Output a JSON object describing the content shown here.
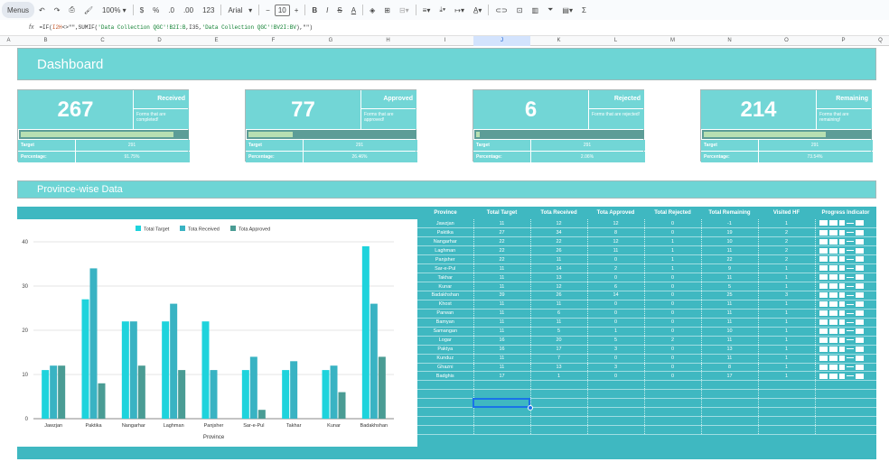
{
  "toolbar": {
    "menus_label": "Menus",
    "zoom": "100%",
    "currency": "$",
    "percent": "%",
    "dec_less": ".0",
    "dec_more": ".00",
    "number_format": "123",
    "font": "Arial",
    "font_size": "10",
    "bold": "B",
    "italic": "I",
    "strike": "S",
    "text_color": "A",
    "sigma": "Σ"
  },
  "formula": {
    "fx": "fx",
    "text_parts": [
      {
        "t": "=IF(",
        "c": ""
      },
      {
        "t": "I2H",
        "c": "r"
      },
      {
        "t": "<>\"\",SUMIF(",
        "c": ""
      },
      {
        "t": "'Data Collection QGC'!B2I:B",
        "c": "s"
      },
      {
        "t": ",I35,",
        "c": ""
      },
      {
        "t": "'Data Collection QGC'!BV2I:BV",
        "c": "s"
      },
      {
        "t": "),\"\")",
        "c": ""
      }
    ]
  },
  "columns": [
    "A",
    "B",
    "C",
    "D",
    "E",
    "F",
    "G",
    "H",
    "I",
    "J",
    "K",
    "L",
    "M",
    "N",
    "O",
    "P",
    "Q"
  ],
  "dashboard_title": "Dashboard",
  "section_title": "Province-wise Data",
  "cards": [
    {
      "value": "267",
      "title": "Received",
      "desc": "Forms that are completed!",
      "progress": 0.9175,
      "target_label": "Target",
      "target": "291",
      "pct_label": "Percentage:",
      "pct": "91.75%"
    },
    {
      "value": "77",
      "title": "Approved",
      "desc": "Forms that are approved!",
      "progress": 0.2646,
      "target_label": "Target",
      "target": "291",
      "pct_label": "Percentage:",
      "pct": "26.46%"
    },
    {
      "value": "6",
      "title": "Rejected",
      "desc": "Forms that are rejected!",
      "progress": 0.0206,
      "target_label": "Target",
      "target": "291",
      "pct_label": "Percentage:",
      "pct": "2.06%"
    },
    {
      "value": "214",
      "title": "Remaining",
      "desc": "Forms that are remaining!",
      "progress": 0.7354,
      "target_label": "Target",
      "target": "291",
      "pct_label": "Percentage:",
      "pct": "73.54%"
    }
  ],
  "table": {
    "headers": [
      "Province",
      "Total Target",
      "Tota Received",
      "Tota Approved",
      "Total Rejected",
      "Total Remaining",
      "Visited HF",
      "Progress Indicator"
    ],
    "rows": [
      [
        "Jawzjan",
        "11",
        "12",
        "12",
        "0",
        "-1",
        "1"
      ],
      [
        "Paktika",
        "27",
        "34",
        "8",
        "0",
        "19",
        "2"
      ],
      [
        "Nangarhar",
        "22",
        "22",
        "12",
        "1",
        "10",
        "2"
      ],
      [
        "Laghman",
        "22",
        "26",
        "11",
        "1",
        "11",
        "2"
      ],
      [
        "Panjsher",
        "22",
        "11",
        "0",
        "1",
        "22",
        "2"
      ],
      [
        "Sar-e-Pul",
        "11",
        "14",
        "2",
        "1",
        "9",
        "1"
      ],
      [
        "Takhar",
        "11",
        "13",
        "0",
        "0",
        "11",
        "1"
      ],
      [
        "Kunar",
        "11",
        "12",
        "6",
        "0",
        "5",
        "1"
      ],
      [
        "Badakhshan",
        "39",
        "26",
        "14",
        "0",
        "25",
        "3"
      ],
      [
        "Khost",
        "11",
        "11",
        "0",
        "0",
        "11",
        "1"
      ],
      [
        "Parwan",
        "11",
        "6",
        "0",
        "0",
        "11",
        "1"
      ],
      [
        "Bamyan",
        "11",
        "11",
        "0",
        "0",
        "11",
        "1"
      ],
      [
        "Samangan",
        "11",
        "5",
        "1",
        "0",
        "10",
        "1"
      ],
      [
        "Logar",
        "16",
        "20",
        "5",
        "2",
        "11",
        "1"
      ],
      [
        "Paktya",
        "16",
        "17",
        "3",
        "0",
        "13",
        "1"
      ],
      [
        "Kunduz",
        "11",
        "7",
        "0",
        "0",
        "11",
        "1"
      ],
      [
        "Ghazni",
        "11",
        "13",
        "3",
        "0",
        "8",
        "1"
      ],
      [
        "Badghis",
        "17",
        "1",
        "0",
        "0",
        "17",
        "1"
      ]
    ]
  },
  "colors": {
    "teal_light": "#6dd5d5",
    "teal_table": "#3fb8c1",
    "series_target": "#1ed3dc",
    "series_received": "#39b3c3",
    "series_approved": "#4a9c94"
  },
  "chart_data": {
    "type": "bar",
    "categories": [
      "Jawzjan",
      "Paktika",
      "Nangarhar",
      "Laghman",
      "Panjsher",
      "Sar-e-Pul",
      "Takhar",
      "Kunar",
      "Badakhshan"
    ],
    "series": [
      {
        "name": "Total Target",
        "values": [
          11,
          27,
          22,
          22,
          22,
          11,
          11,
          11,
          39
        ]
      },
      {
        "name": "Tota Received",
        "values": [
          12,
          34,
          22,
          26,
          11,
          14,
          13,
          12,
          26
        ]
      },
      {
        "name": "Tota Approved",
        "values": [
          12,
          8,
          12,
          11,
          0,
          2,
          0,
          6,
          14
        ]
      }
    ],
    "xlabel": "Province",
    "ylabel": "",
    "ylim": [
      0,
      40
    ],
    "yticks": [
      0,
      10,
      20,
      30,
      40
    ],
    "legend": "top",
    "grid": true
  }
}
